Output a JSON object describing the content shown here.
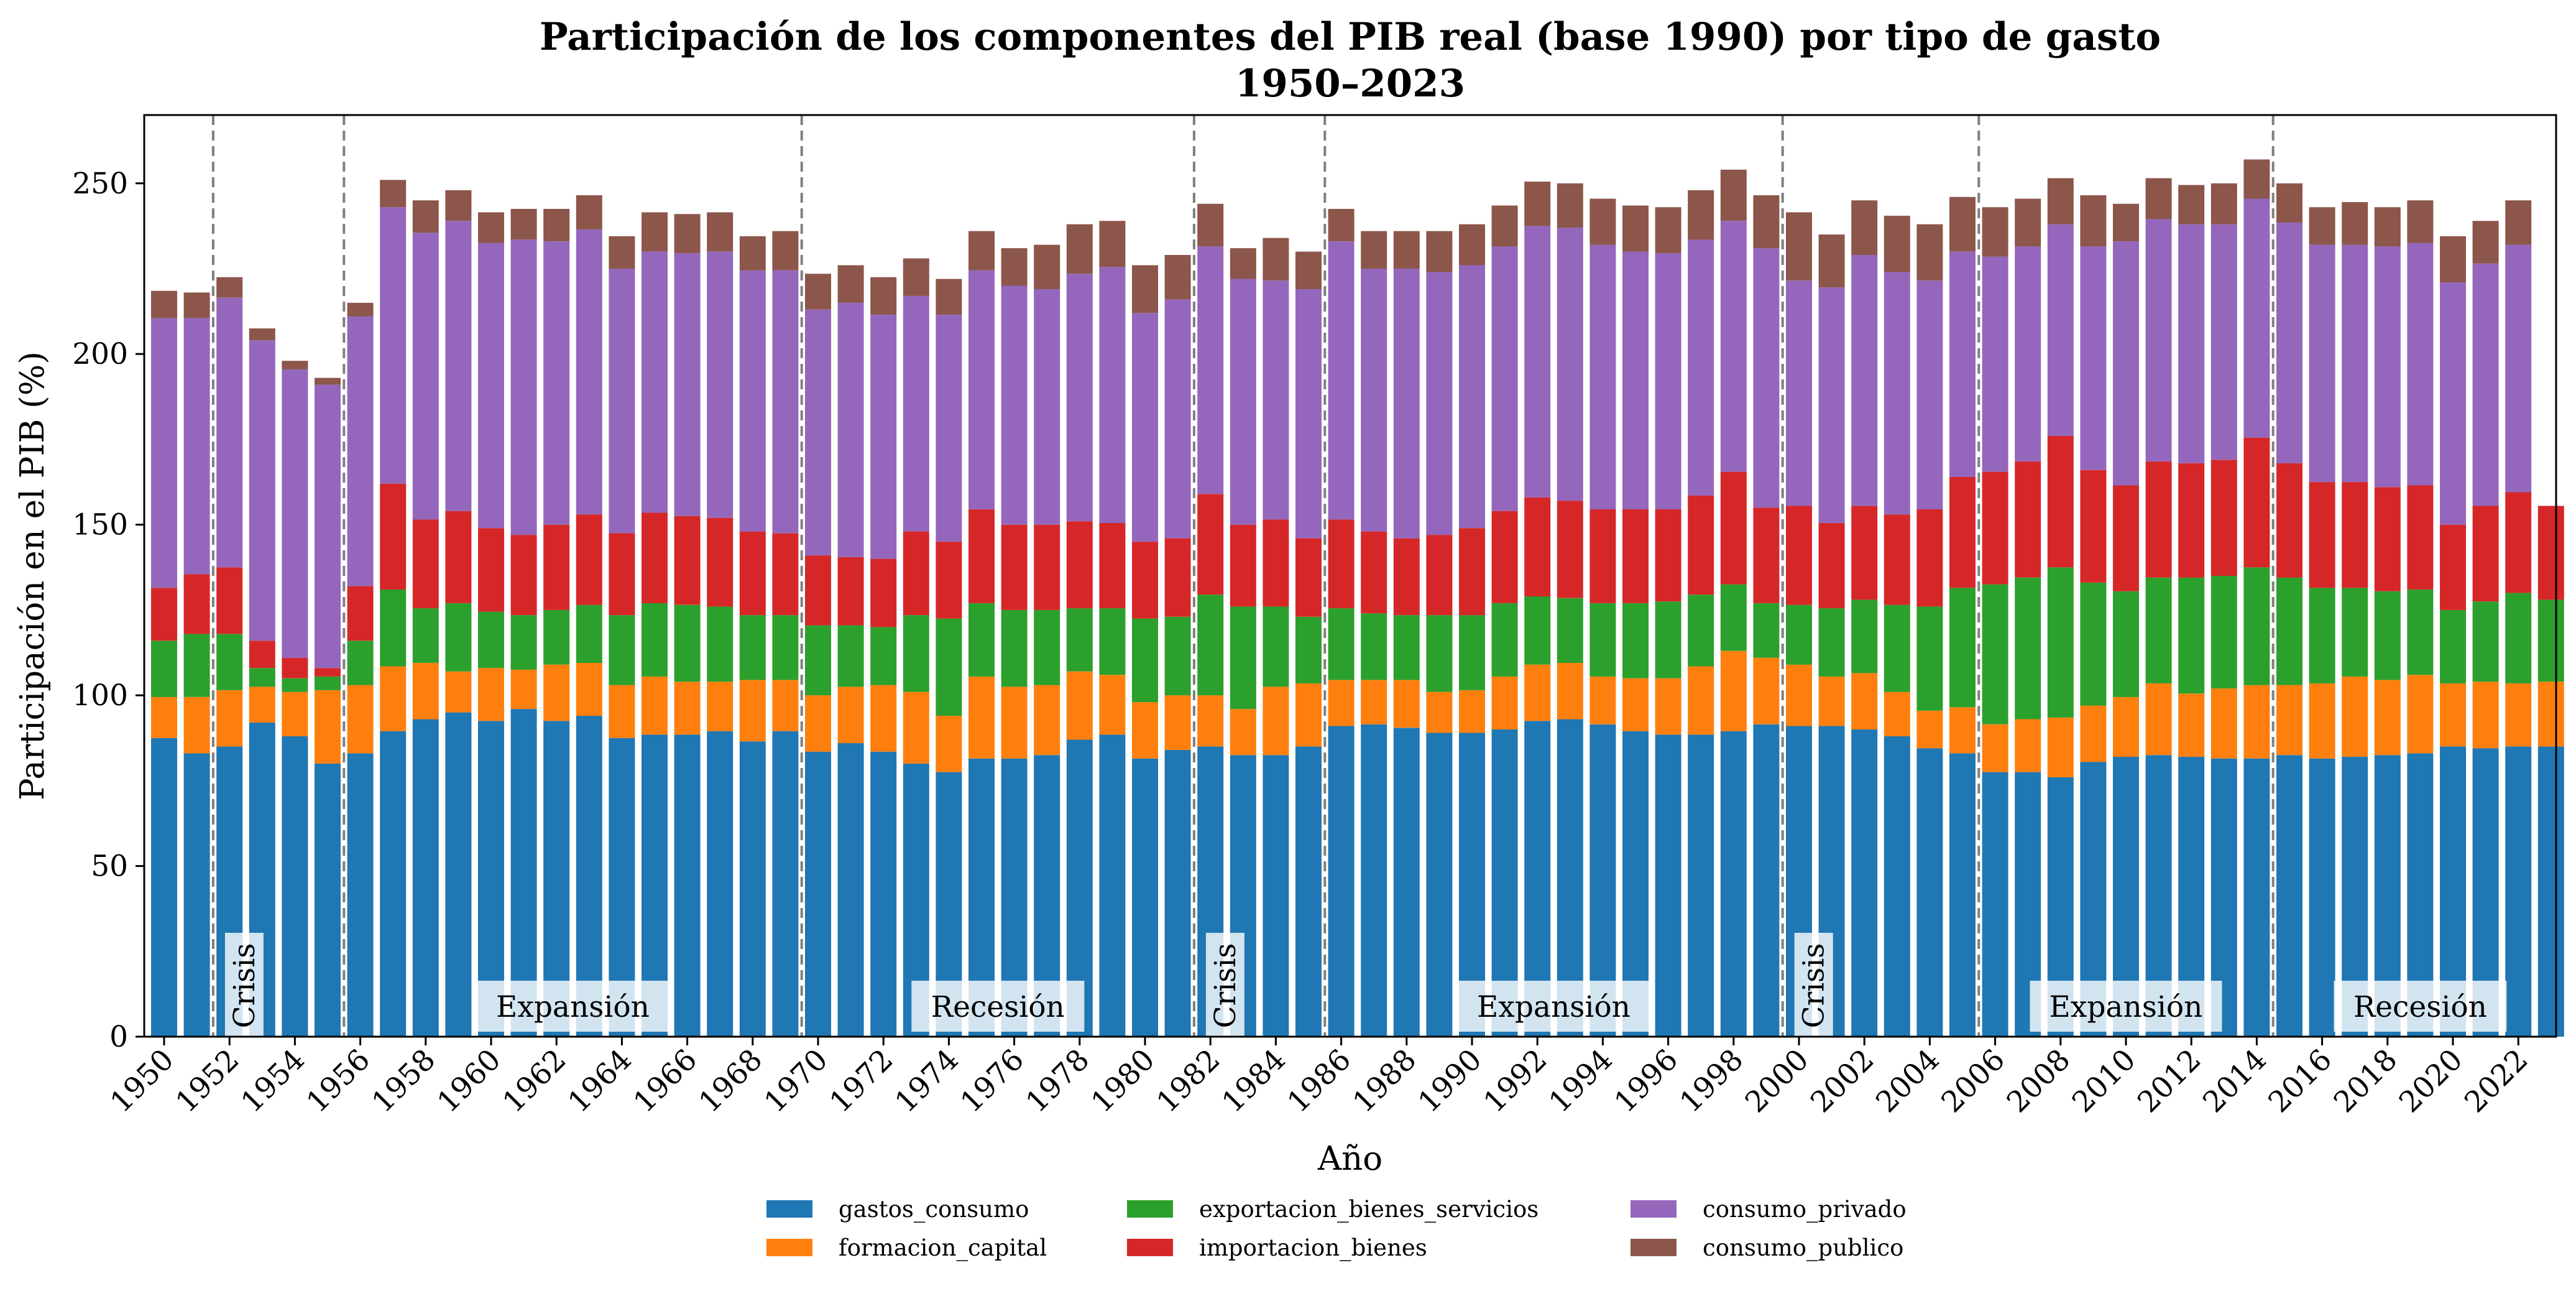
{
  "chart_data": {
    "type": "bar",
    "stacked": true,
    "title": "Participación de los componentes del PIB real (base 1990) por tipo de gasto",
    "subtitle": "1950–2023",
    "xlabel": "Año",
    "ylabel": "Participación en el PIB (%)",
    "ylim": [
      0,
      270
    ],
    "yticks": [
      0,
      50,
      100,
      150,
      200,
      250
    ],
    "grid": false,
    "legend_position": "bottom-center",
    "categories": [
      1950,
      1951,
      1952,
      1953,
      1954,
      1955,
      1956,
      1957,
      1958,
      1959,
      1960,
      1961,
      1962,
      1963,
      1964,
      1965,
      1966,
      1967,
      1968,
      1969,
      1970,
      1971,
      1972,
      1973,
      1974,
      1975,
      1976,
      1977,
      1978,
      1979,
      1980,
      1981,
      1982,
      1983,
      1984,
      1985,
      1986,
      1987,
      1988,
      1989,
      1990,
      1991,
      1992,
      1993,
      1994,
      1995,
      1996,
      1997,
      1998,
      1999,
      2000,
      2001,
      2002,
      2003,
      2004,
      2005,
      2006,
      2007,
      2008,
      2009,
      2010,
      2011,
      2012,
      2013,
      2014,
      2015,
      2016,
      2017,
      2018,
      2019,
      2020,
      2021,
      2022,
      2023
    ],
    "xticks": [
      1950,
      1952,
      1954,
      1956,
      1958,
      1960,
      1962,
      1964,
      1966,
      1968,
      1970,
      1972,
      1974,
      1976,
      1978,
      1980,
      1982,
      1984,
      1986,
      1988,
      1990,
      1992,
      1994,
      1996,
      1998,
      2000,
      2002,
      2004,
      2006,
      2008,
      2010,
      2012,
      2014,
      2016,
      2018,
      2020,
      2022
    ],
    "series": [
      {
        "name": "gastos_consumo",
        "color": "#1f77b4",
        "values": [
          87.5,
          83,
          85,
          92,
          88,
          80,
          83,
          89.5,
          93,
          95,
          92.5,
          96,
          92.5,
          94,
          87.5,
          88.5,
          88.5,
          89.5,
          86.5,
          89.5,
          83.5,
          86,
          83.5,
          80,
          77.5,
          81.5,
          81.5,
          82.5,
          87,
          88.5,
          81.5,
          84,
          85,
          82.5,
          82.5,
          85,
          91,
          91.5,
          90.5,
          89,
          89,
          90,
          92.5,
          93,
          91.5,
          89.5,
          88.5,
          88.5,
          89.5,
          91.5,
          91,
          91,
          90,
          88,
          84.5,
          83,
          77.5,
          77.5,
          76,
          80.5,
          82,
          82.5,
          82,
          81.5,
          81.5,
          82.5,
          81.5,
          82,
          82.5,
          83,
          85,
          84.5,
          85,
          85
        ]
      },
      {
        "name": "formacion_capital",
        "color": "#ff7f0e",
        "values": [
          12,
          16.5,
          16.5,
          10.5,
          13,
          21.5,
          20,
          19,
          16.5,
          12,
          15.5,
          11.5,
          16.5,
          15.5,
          15.5,
          17,
          15.5,
          14.5,
          18,
          15,
          16.5,
          16.5,
          19.5,
          21,
          16.5,
          24,
          21,
          20.5,
          20,
          17.5,
          16.5,
          16,
          15,
          13.5,
          20,
          18.5,
          13.5,
          13,
          14,
          12,
          12.5,
          15.5,
          16.5,
          16.5,
          14,
          15.5,
          16.5,
          20,
          23.5,
          19.5,
          18,
          14.5,
          16.5,
          13,
          11,
          13.5,
          14,
          15.5,
          17.5,
          16.5,
          17.5,
          21,
          18.5,
          20.5,
          21.5,
          20.5,
          22,
          23.5,
          22,
          23,
          18.5,
          19.5,
          18.5,
          19
        ]
      },
      {
        "name": "exportacion_bienes_servicios",
        "color": "#2ca02c",
        "values": [
          16.5,
          18.5,
          16.5,
          5.5,
          4,
          4,
          13,
          22.5,
          16,
          20,
          16.5,
          16,
          16,
          17,
          20.5,
          21.5,
          22.5,
          22,
          19,
          19,
          20.5,
          18,
          17,
          22.5,
          28.5,
          21.5,
          22.5,
          22,
          18.5,
          19.5,
          24.5,
          23,
          29.5,
          30,
          23.5,
          19.5,
          21,
          19.5,
          19,
          22.5,
          22,
          21.5,
          20,
          19,
          21.5,
          22,
          22.5,
          21,
          19.5,
          16,
          17.5,
          20,
          21.5,
          25.5,
          30.5,
          35,
          41,
          41.5,
          44,
          36,
          31,
          31,
          34,
          33,
          34.5,
          31.5,
          28,
          26,
          26,
          25,
          21.5,
          23.5,
          26.5,
          24
        ]
      },
      {
        "name": "importacion_bienes",
        "color": "#d62728",
        "values": [
          15.5,
          17.5,
          19.5,
          8,
          6,
          2.5,
          16,
          31,
          26,
          27,
          24.5,
          23.5,
          25,
          26.5,
          24,
          26.5,
          26,
          26,
          24.5,
          24,
          20.5,
          20,
          20,
          24.5,
          22.5,
          27.5,
          25,
          25,
          25.5,
          25,
          22.5,
          23,
          29.5,
          24,
          25.5,
          23,
          26,
          24,
          22.5,
          23.5,
          25.5,
          27,
          29,
          28.5,
          27.5,
          27.5,
          27,
          29,
          33,
          28,
          29,
          25,
          27.5,
          26.5,
          28.5,
          32.5,
          33,
          34,
          38.5,
          33,
          31,
          34,
          33.5,
          34,
          38,
          33.5,
          31,
          31,
          30.5,
          30.5,
          25,
          28,
          29.5,
          27.5
        ]
      },
      {
        "name": "consumo_privado",
        "color": "#9467bd",
        "values": [
          79,
          75,
          79,
          88,
          84.5,
          83,
          79,
          81,
          84,
          85,
          83.5,
          86.5,
          83,
          83.5,
          77.5,
          76.5,
          77,
          78,
          76.5,
          77,
          72,
          74.5,
          71.5,
          69,
          66.5,
          70,
          70,
          69,
          72.5,
          75,
          67,
          70,
          72.5,
          72,
          70,
          73,
          81.5,
          77,
          79,
          77,
          77,
          77.5,
          79.5,
          80,
          77.5,
          75.5,
          75,
          75,
          73.5,
          76,
          66,
          69,
          73.5,
          71,
          67,
          66,
          63,
          63,
          62,
          65.5,
          71.5,
          71,
          70,
          69,
          70,
          70.5,
          69.5,
          69.5,
          70.5,
          71,
          71,
          71,
          72.5,
          0
        ]
      },
      {
        "name": "consumo_publico",
        "color": "#8c564b",
        "values": [
          8,
          7.5,
          6,
          3.5,
          2.5,
          2,
          4,
          8,
          9.5,
          9,
          9,
          9,
          9.5,
          10,
          9.5,
          11.5,
          11.5,
          11.5,
          10,
          11.5,
          10.5,
          11,
          11,
          11,
          10.5,
          11.5,
          11,
          13,
          14.5,
          13.5,
          14,
          13,
          12.5,
          9,
          12.5,
          11,
          9.5,
          11,
          11,
          12,
          12,
          12,
          13,
          13,
          13.5,
          13.5,
          13.5,
          14.5,
          15,
          15.5,
          20,
          15.5,
          16,
          16.5,
          16.5,
          16,
          14.5,
          14,
          13.5,
          15,
          11,
          12,
          11.5,
          12,
          11.5,
          11.5,
          11,
          12.5,
          11.5,
          12.5,
          13.5,
          12.5,
          13,
          0
        ]
      }
    ],
    "periods": [
      {
        "label": "Crisis",
        "orientation": "vertical",
        "start": 1951.5,
        "end": 1955.5
      },
      {
        "label": "Expansión",
        "orientation": "horizontal",
        "start": 1955.5,
        "end": 1969.5
      },
      {
        "label": "Recesión",
        "orientation": "horizontal",
        "start": 1969.5,
        "end": 1981.5
      },
      {
        "label": "Crisis",
        "orientation": "vertical",
        "start": 1981.5,
        "end": 1985.5
      },
      {
        "label": "Expansión",
        "orientation": "horizontal",
        "start": 1985.5,
        "end": 1999.5
      },
      {
        "label": "Crisis",
        "orientation": "vertical",
        "start": 1999.5,
        "end": 2005.5
      },
      {
        "label": "Expansión",
        "orientation": "horizontal",
        "start": 2005.5,
        "end": 2014.5
      },
      {
        "label": "Recesión",
        "orientation": "horizontal",
        "start": 2014.5,
        "end": 2023.5
      }
    ],
    "period_boundaries": [
      1951.5,
      1955.5,
      1969.5,
      1981.5,
      1985.5,
      1999.5,
      2005.5,
      2014.5
    ]
  }
}
